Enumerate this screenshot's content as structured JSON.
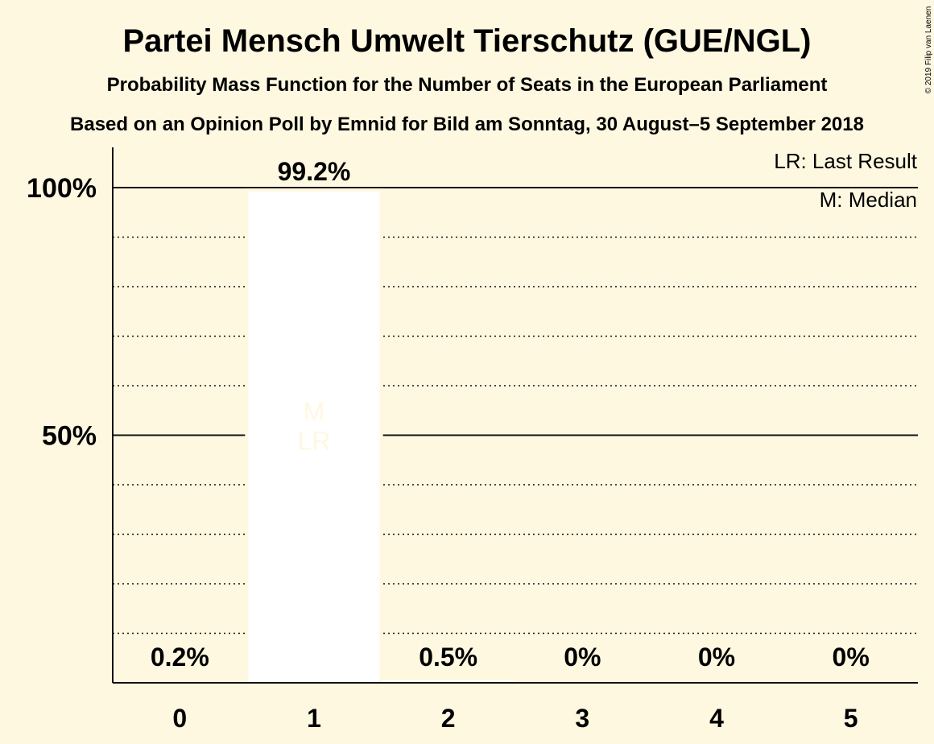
{
  "colors": {
    "background": "#FFF8E1",
    "bar": "#FFFFFF",
    "marker_text": "#FFF8E1",
    "text": "#111111"
  },
  "chart_data": {
    "type": "bar",
    "title": "Partei Mensch Umwelt Tierschutz (GUE/NGL)",
    "subtitle": "Probability Mass Function for the Number of Seats in the European Parliament",
    "subtitle2": "Based on an Opinion Poll by Emnid for Bild am Sonntag, 30 August–5 September 2018",
    "copyright": "© 2019 Filip van Laenen",
    "categories": [
      "0",
      "1",
      "2",
      "3",
      "4",
      "5"
    ],
    "values": [
      0.2,
      99.2,
      0.5,
      0,
      0,
      0
    ],
    "data_labels": [
      "0.2%",
      "99.2%",
      "0.5%",
      "0%",
      "0%",
      "0%"
    ],
    "y_ticks": [
      {
        "value": 50,
        "label": "50%"
      },
      {
        "value": 100,
        "label": "100%"
      }
    ],
    "ylim": [
      0,
      110
    ],
    "median_category": "1",
    "last_result_category": "1",
    "median_marker": "M",
    "last_result_marker": "LR",
    "legend": {
      "placement": "top-right",
      "last_result": "LR: Last Result",
      "median": "M: Median"
    },
    "grid": true
  }
}
